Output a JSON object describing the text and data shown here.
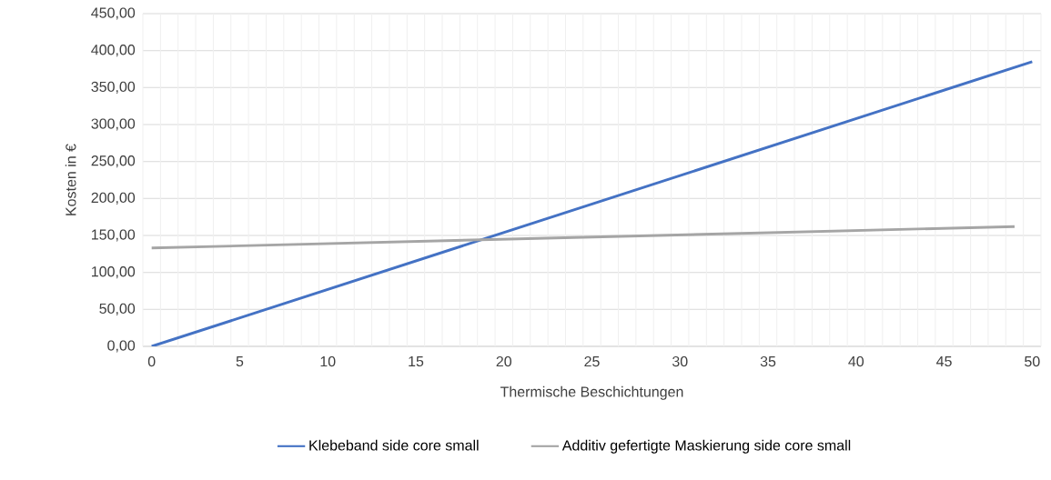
{
  "chart_data": {
    "type": "line",
    "xlabel": "Thermische Beschichtungen",
    "ylabel": "Kosten in €",
    "xlim": [
      -0.5,
      50.5
    ],
    "xticks": [
      0,
      5,
      10,
      15,
      20,
      25,
      30,
      35,
      40,
      45,
      50,
      {
        "value": -0.5,
        "label": null
      },
      {
        "value": 0.5,
        "label": null
      },
      {
        "value": 1.5,
        "label": null
      },
      {
        "value": 2.5,
        "label": null
      },
      {
        "value": 3.5,
        "label": null
      },
      {
        "value": 4.5,
        "label": null
      },
      {
        "value": 5.5,
        "label": null
      },
      {
        "value": 6.5,
        "label": null
      },
      {
        "value": 7.5,
        "label": null
      },
      {
        "value": 8.5,
        "label": null
      },
      {
        "value": 9.5,
        "label": null
      },
      {
        "value": 10.5,
        "label": null
      },
      {
        "value": 11.5,
        "label": null
      },
      {
        "value": 12.5,
        "label": null
      },
      {
        "value": 13.5,
        "label": null
      },
      {
        "value": 14.5,
        "label": null
      },
      {
        "value": 15.5,
        "label": null
      },
      {
        "value": 16.5,
        "label": null
      },
      {
        "value": 17.5,
        "label": null
      },
      {
        "value": 18.5,
        "label": null
      },
      {
        "value": 19.5,
        "label": null
      },
      {
        "value": 20.5,
        "label": null
      },
      {
        "value": 21.5,
        "label": null
      },
      {
        "value": 22.5,
        "label": null
      },
      {
        "value": 23.5,
        "label": null
      },
      {
        "value": 24.5,
        "label": null
      },
      {
        "value": 25.5,
        "label": null
      },
      {
        "value": 26.5,
        "label": null
      },
      {
        "value": 27.5,
        "label": null
      },
      {
        "value": 28.5,
        "label": null
      },
      {
        "value": 29.5,
        "label": null
      },
      {
        "value": 30.5,
        "label": null
      },
      {
        "value": 31.5,
        "label": null
      },
      {
        "value": 32.5,
        "label": null
      },
      {
        "value": 33.5,
        "label": null
      },
      {
        "value": 34.5,
        "label": null
      },
      {
        "value": 35.5,
        "label": null
      },
      {
        "value": 36.5,
        "label": null
      },
      {
        "value": 37.5,
        "label": null
      },
      {
        "value": 38.5,
        "label": null
      },
      {
        "value": 39.5,
        "label": null
      },
      {
        "value": 40.5,
        "label": null
      },
      {
        "value": 41.5,
        "label": null
      },
      {
        "value": 42.5,
        "label": null
      },
      {
        "value": 43.5,
        "label": null
      },
      {
        "value": 44.5,
        "label": null
      },
      {
        "value": 45.5,
        "label": null
      },
      {
        "value": 46.5,
        "label": null
      },
      {
        "value": 47.5,
        "label": null
      },
      {
        "value": 48.5,
        "label": null
      },
      {
        "value": 49.5,
        "label": null
      },
      {
        "value": 50.5,
        "label": null
      }
    ],
    "ylim": [
      0,
      450
    ],
    "yticks": [
      {
        "value": 0,
        "label": "0,00"
      },
      {
        "value": 50,
        "label": "50,00"
      },
      {
        "value": 100,
        "label": "100,00"
      },
      {
        "value": 150,
        "label": "150,00"
      },
      {
        "value": 200,
        "label": "200,00"
      },
      {
        "value": 250,
        "label": "250,00"
      },
      {
        "value": 300,
        "label": "300,00"
      },
      {
        "value": 350,
        "label": "350,00"
      },
      {
        "value": 400,
        "label": "400,00"
      },
      {
        "value": 450,
        "label": "450,00"
      }
    ],
    "grid": true,
    "legend": "bottom",
    "marker": "none",
    "line_style": "solid",
    "series": [
      {
        "name": "Klebeband side core small",
        "color": "#4472c4",
        "x": [
          0,
          50
        ],
        "values": [
          0,
          385
        ]
      },
      {
        "name": "Additiv gefertigte Maskierung side core small",
        "color": "#a5a5a5",
        "x": [
          0,
          49
        ],
        "values": [
          133,
          162
        ]
      }
    ]
  }
}
